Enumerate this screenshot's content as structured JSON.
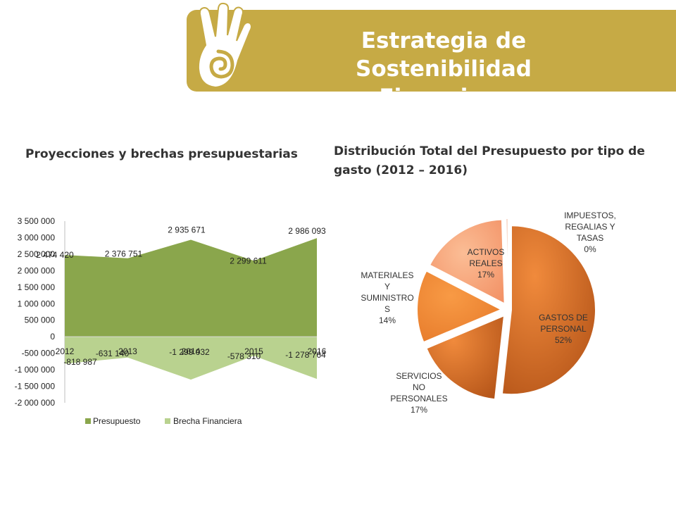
{
  "header": {
    "title_line1": "Estrategia de Sostenibilidad",
    "title_line2": "Financiera",
    "logo_icon": "hand-spiral-icon"
  },
  "colors": {
    "banner": "#c6aa45",
    "presupuesto": "#8aa64c",
    "brecha": "#b9d28f",
    "pie_dark": "#c96320",
    "pie_light": "#f7a97c"
  },
  "chart_data": [
    {
      "type": "area",
      "title": "Proyecciones y brechas presupuestarias",
      "categories": [
        "2012",
        "2013",
        "2014",
        "2015",
        "2016"
      ],
      "series": [
        {
          "name": "Presupuesto",
          "values": [
            2474420,
            2376751,
            2935671,
            2299611,
            2986093
          ],
          "labels": [
            "2 474 420",
            "2 376 751",
            "2 935 671",
            "2 299 611",
            "2 986 093"
          ]
        },
        {
          "name": "Brecha Financiera",
          "values": [
            -818987,
            -631140,
            -1299032,
            -578310,
            -1278764
          ],
          "labels": [
            "-818 987",
            "-631 140",
            "-1 299 032",
            "-578 310",
            "-1 278 764"
          ]
        }
      ],
      "ylim": [
        -2000000,
        3500000
      ],
      "yticks": [
        3500000,
        3000000,
        2500000,
        2000000,
        1500000,
        1000000,
        500000,
        0,
        -500000,
        -1000000,
        -1500000,
        -2000000
      ],
      "ytick_labels": [
        "3 500 000",
        "3 000 000",
        "2 500 000",
        "2 000 000",
        "1 500 000",
        "1 000 000",
        "500 000",
        "0",
        "-500 000",
        "-1 000 000",
        "-1 500 000",
        "-2 000 000"
      ],
      "legend": "bottom"
    },
    {
      "type": "pie",
      "title": "Distribución Total del Presupuesto por tipo de gasto (2012 – 2016)",
      "slices": [
        {
          "label": "GASTOS DE PERSONAL",
          "percent_label": "52%",
          "value": 52,
          "label_lines": [
            "GASTOS DE",
            "PERSONAL",
            "52%"
          ]
        },
        {
          "label": "SERVICIOS NO PERSONALES",
          "percent_label": "17%",
          "value": 17,
          "label_lines": [
            "SERVICIOS",
            "NO",
            "PERSONALES",
            "17%"
          ]
        },
        {
          "label": "MATERIALES Y SUMINISTROS",
          "percent_label": "14%",
          "value": 14,
          "label_lines": [
            "MATERIALES",
            "Y",
            "SUMINISTRO",
            "S",
            "14%"
          ]
        },
        {
          "label": "ACTIVOS REALES",
          "percent_label": "17%",
          "value": 17,
          "label_lines": [
            "ACTIVOS",
            "REALES",
            "17%"
          ]
        },
        {
          "label": "IMPUESTOS, REGALIAS Y TASAS",
          "percent_label": "0%",
          "value": 0.5,
          "label_lines": [
            "IMPUESTOS,",
            "REGALIAS Y",
            "TASAS",
            "0%"
          ]
        }
      ]
    }
  ]
}
